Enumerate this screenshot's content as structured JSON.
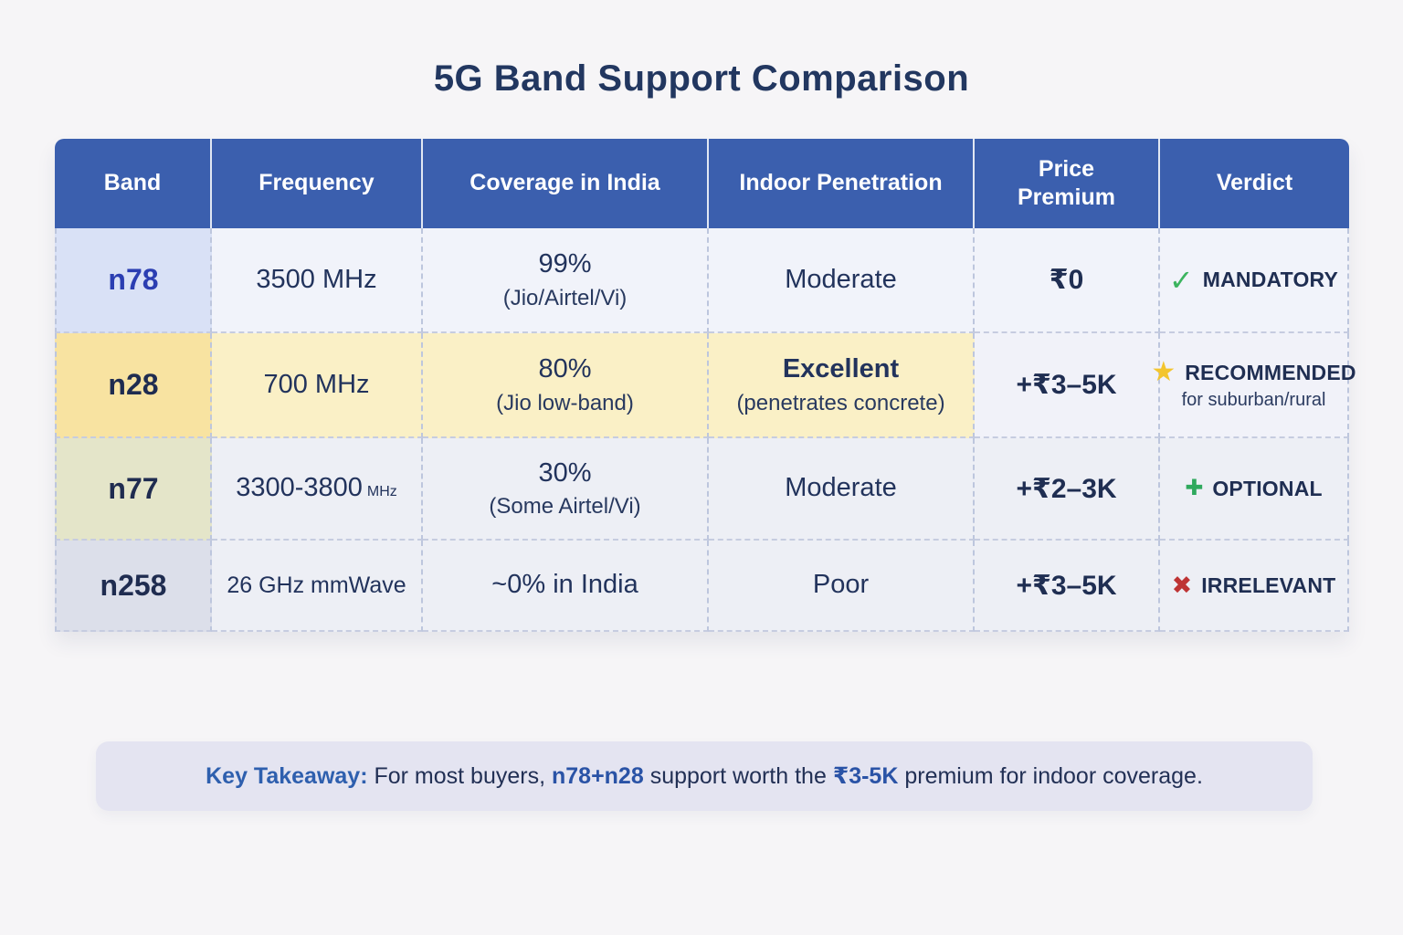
{
  "title": "5G Band Support Comparison",
  "table": {
    "headers": [
      "Band",
      "Frequency",
      "Coverage in India",
      "Indoor Penetration",
      "Price Premium",
      "Verdict"
    ],
    "rows": [
      {
        "band": "n78",
        "frequency_main": "3500 MHz",
        "coverage_main": "99%",
        "coverage_sub": "(Jio/Airtel/Vi)",
        "indoor_main": "Moderate",
        "price": "₹0",
        "verdict_icon": "✓",
        "verdict_label": "MANDATORY"
      },
      {
        "band": "n28",
        "frequency_main": "700 MHz",
        "coverage_main": "80%",
        "coverage_sub": "(Jio low-band)",
        "indoor_main": "Excellent",
        "indoor_sub": "(penetrates concrete)",
        "price": "+₹3–5K",
        "verdict_icon": "★",
        "verdict_label": "RECOMMENDED",
        "verdict_sub": "for suburban/rural"
      },
      {
        "band": "n77",
        "frequency_main": "3300-3800",
        "frequency_unit": "MHz",
        "coverage_main": "30%",
        "coverage_sub": "(Some Airtel/Vi)",
        "indoor_main": "Moderate",
        "price": "+₹2–3K",
        "verdict_icon": "✚",
        "verdict_label": "OPTIONAL"
      },
      {
        "band": "n258",
        "frequency_main": "26 GHz mmWave",
        "coverage_main": "~0% in India",
        "indoor_main": "Poor",
        "price": "+₹3–5K",
        "verdict_icon": "✖",
        "verdict_label": "IRRELEVANT"
      }
    ]
  },
  "takeaway": {
    "label": "Key Takeaway:",
    "part1": " For most buyers, ",
    "highlight1": "n78+n28",
    "part2": " support worth the ",
    "highlight2": "₹3-5K",
    "part3": " premium for indoor coverage."
  },
  "colors": {
    "header_bg": "#3B5FAE",
    "title_text": "#223760",
    "text_navy": "#1F2E52",
    "band_n78_text": "#2B3EB2",
    "row_n78_band_bg": "#D9E1F6",
    "row_n28_band_bg": "#F8E3A1",
    "row_n28_highlight_bg": "#FAF0C6",
    "row_n77_band_bg": "#E4E5C9",
    "row_n258_band_bg": "#DCDFEA",
    "check_green": "#3CB45F",
    "star_yellow": "#F3C52E",
    "plus_green": "#2FA95D",
    "cross_red": "#BE3434",
    "takeaway_bg": "#E4E4F1",
    "takeaway_accent": "#2E5FAE"
  }
}
